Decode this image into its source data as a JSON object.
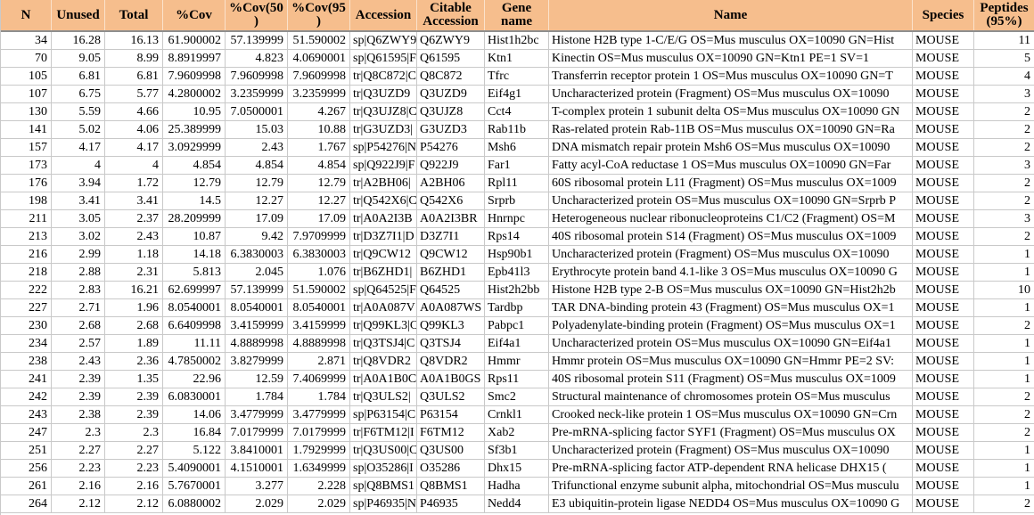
{
  "colors": {
    "header_bg": "#F6BE8D",
    "header_border": "#8E8E8E",
    "grid": "#C9C9C9",
    "text": "#000000"
  },
  "table": {
    "columns": [
      {
        "key": "n",
        "label": "N",
        "align": "right"
      },
      {
        "key": "unused",
        "label": "Unused",
        "align": "right"
      },
      {
        "key": "total",
        "label": "Total",
        "align": "right"
      },
      {
        "key": "pct-cov",
        "label": "%Cov",
        "align": "right"
      },
      {
        "key": "pct-cov-50",
        "label": "%Cov(50\n)",
        "align": "right"
      },
      {
        "key": "pct-cov-95",
        "label": "%Cov(95\n)",
        "align": "right"
      },
      {
        "key": "accession",
        "label": "Accession",
        "align": "left"
      },
      {
        "key": "citable-accession",
        "label": "Citable\nAccession",
        "align": "left"
      },
      {
        "key": "gene-name",
        "label": "Gene\nname",
        "align": "left"
      },
      {
        "key": "name",
        "label": "Name",
        "align": "left"
      },
      {
        "key": "species",
        "label": "Species",
        "align": "left"
      },
      {
        "key": "peptides-95",
        "label": "Peptides\n(95%)",
        "align": "right"
      }
    ],
    "rows": [
      [
        "34",
        "16.28",
        "16.13",
        "61.900002",
        "57.139999",
        "51.590002",
        "sp|Q6ZWY9",
        "Q6ZWY9",
        "Hist1h2bc",
        "Histone H2B type 1-C/E/G OS=Mus musculus OX=10090 GN=Hist",
        "MOUSE",
        "11"
      ],
      [
        "70",
        "9.05",
        "8.99",
        "8.8919997",
        "4.823",
        "4.0690001",
        "sp|Q61595|F",
        "Q61595",
        "Ktn1",
        "Kinectin OS=Mus musculus OX=10090 GN=Ktn1 PE=1 SV=1",
        "MOUSE",
        "5"
      ],
      [
        "105",
        "6.81",
        "6.81",
        "7.9609998",
        "7.9609998",
        "7.9609998",
        "tr|Q8C872|C",
        "Q8C872",
        "Tfrc",
        "Transferrin receptor protein 1 OS=Mus musculus OX=10090 GN=T",
        "MOUSE",
        "4"
      ],
      [
        "107",
        "6.75",
        "5.77",
        "4.2800002",
        "3.2359999",
        "3.2359999",
        "tr|Q3UZD9",
        "Q3UZD9",
        "Eif4g1",
        "Uncharacterized protein (Fragment) OS=Mus musculus OX=10090",
        "MOUSE",
        "3"
      ],
      [
        "130",
        "5.59",
        "4.66",
        "10.95",
        "7.0500001",
        "4.267",
        "tr|Q3UJZ8|C",
        "Q3UJZ8",
        "Cct4",
        "T-complex protein 1 subunit delta OS=Mus musculus OX=10090 GN",
        "MOUSE",
        "2"
      ],
      [
        "141",
        "5.02",
        "4.06",
        "25.389999",
        "15.03",
        "10.88",
        "tr|G3UZD3|",
        "G3UZD3",
        "Rab11b",
        "Ras-related protein Rab-11B OS=Mus musculus OX=10090 GN=Ra",
        "MOUSE",
        "2"
      ],
      [
        "157",
        "4.17",
        "4.17",
        "3.0929999",
        "2.43",
        "1.767",
        "sp|P54276|N",
        "P54276",
        "Msh6",
        "DNA mismatch repair protein Msh6 OS=Mus musculus OX=10090",
        "MOUSE",
        "2"
      ],
      [
        "173",
        "4",
        "4",
        "4.854",
        "4.854",
        "4.854",
        "sp|Q922J9|F",
        "Q922J9",
        "Far1",
        "Fatty acyl-CoA reductase 1 OS=Mus musculus OX=10090 GN=Far",
        "MOUSE",
        "3"
      ],
      [
        "176",
        "3.94",
        "1.72",
        "12.79",
        "12.79",
        "12.79",
        "tr|A2BH06|",
        "A2BH06",
        "Rpl11",
        "60S ribosomal protein L11 (Fragment) OS=Mus musculus OX=1009",
        "MOUSE",
        "2"
      ],
      [
        "198",
        "3.41",
        "3.41",
        "14.5",
        "12.27",
        "12.27",
        "tr|Q542X6|C",
        "Q542X6",
        "Srprb",
        "Uncharacterized protein OS=Mus musculus OX=10090 GN=Srprb P",
        "MOUSE",
        "2"
      ],
      [
        "211",
        "3.05",
        "2.37",
        "28.209999",
        "17.09",
        "17.09",
        "tr|A0A2I3B",
        "A0A2I3BR",
        "Hnrnpc",
        "Heterogeneous nuclear ribonucleoproteins C1/C2 (Fragment) OS=M",
        "MOUSE",
        "3"
      ],
      [
        "213",
        "3.02",
        "2.43",
        "10.87",
        "9.42",
        "7.9709999",
        "tr|D3Z7I1|D",
        "D3Z7I1",
        "Rps14",
        "40S ribosomal protein S14 (Fragment) OS=Mus musculus OX=1009",
        "MOUSE",
        "2"
      ],
      [
        "216",
        "2.99",
        "1.18",
        "14.18",
        "6.3830003",
        "6.3830003",
        "tr|Q9CW12",
        "Q9CW12",
        "Hsp90b1",
        "Uncharacterized protein (Fragment) OS=Mus musculus OX=10090",
        "MOUSE",
        "1"
      ],
      [
        "218",
        "2.88",
        "2.31",
        "5.813",
        "2.045",
        "1.076",
        "tr|B6ZHD1|",
        "B6ZHD1",
        "Epb41l3",
        "Erythrocyte protein band 4.1-like 3 OS=Mus musculus OX=10090 G",
        "MOUSE",
        "1"
      ],
      [
        "222",
        "2.83",
        "16.21",
        "62.699997",
        "57.139999",
        "51.590002",
        "sp|Q64525|F",
        "Q64525",
        "Hist2h2bb",
        "Histone H2B type 2-B OS=Mus musculus OX=10090 GN=Hist2h2b",
        "MOUSE",
        "10"
      ],
      [
        "227",
        "2.71",
        "1.96",
        "8.0540001",
        "8.0540001",
        "8.0540001",
        "tr|A0A087V",
        "A0A087WS",
        "Tardbp",
        "TAR DNA-binding protein 43 (Fragment) OS=Mus musculus OX=1",
        "MOUSE",
        "1"
      ],
      [
        "230",
        "2.68",
        "2.68",
        "6.6409998",
        "3.4159999",
        "3.4159999",
        "tr|Q99KL3|C",
        "Q99KL3",
        "Pabpc1",
        "Polyadenylate-binding protein (Fragment) OS=Mus musculus OX=1",
        "MOUSE",
        "2"
      ],
      [
        "234",
        "2.57",
        "1.89",
        "11.11",
        "4.8889998",
        "4.8889998",
        "tr|Q3TSJ4|C",
        "Q3TSJ4",
        "Eif4a1",
        "Uncharacterized protein OS=Mus musculus OX=10090 GN=Eif4a1",
        "MOUSE",
        "1"
      ],
      [
        "238",
        "2.43",
        "2.36",
        "4.7850002",
        "3.8279999",
        "2.871",
        "tr|Q8VDR2",
        "Q8VDR2",
        "Hmmr",
        "Hmmr protein OS=Mus musculus OX=10090 GN=Hmmr PE=2 SV:",
        "MOUSE",
        "1"
      ],
      [
        "241",
        "2.39",
        "1.35",
        "22.96",
        "12.59",
        "7.4069999",
        "tr|A0A1B0C",
        "A0A1B0GS",
        "Rps11",
        "40S ribosomal protein S11 (Fragment) OS=Mus musculus OX=1009",
        "MOUSE",
        "1"
      ],
      [
        "242",
        "2.39",
        "2.39",
        "6.0830001",
        "1.784",
        "1.784",
        "tr|Q3ULS2|",
        "Q3ULS2",
        "Smc2",
        "Structural maintenance of chromosomes protein OS=Mus musculus",
        "MOUSE",
        "2"
      ],
      [
        "243",
        "2.38",
        "2.39",
        "14.06",
        "3.4779999",
        "3.4779999",
        "sp|P63154|C",
        "P63154",
        "Crnkl1",
        "Crooked neck-like protein 1 OS=Mus musculus OX=10090 GN=Crn",
        "MOUSE",
        "2"
      ],
      [
        "247",
        "2.3",
        "2.3",
        "16.84",
        "7.0179999",
        "7.0179999",
        "tr|F6TM12|I",
        "F6TM12",
        "Xab2",
        "Pre-mRNA-splicing factor SYF1 (Fragment) OS=Mus musculus OX",
        "MOUSE",
        "2"
      ],
      [
        "251",
        "2.27",
        "2.27",
        "5.122",
        "3.8410001",
        "1.7929999",
        "tr|Q3US00|C",
        "Q3US00",
        "Sf3b1",
        "Uncharacterized protein (Fragment) OS=Mus musculus OX=10090",
        "MOUSE",
        "1"
      ],
      [
        "256",
        "2.23",
        "2.23",
        "5.4090001",
        "4.1510001",
        "1.6349999",
        "sp|O35286|I",
        "O35286",
        "Dhx15",
        "Pre-mRNA-splicing factor ATP-dependent RNA helicase DHX15 (",
        "MOUSE",
        "1"
      ],
      [
        "261",
        "2.16",
        "2.16",
        "5.7670001",
        "3.277",
        "2.228",
        "sp|Q8BMS1",
        "Q8BMS1",
        "Hadha",
        "Trifunctional enzyme subunit alpha, mitochondrial OS=Mus musculu",
        "MOUSE",
        "1"
      ],
      [
        "264",
        "2.12",
        "2.12",
        "6.0880002",
        "2.029",
        "2.029",
        "sp|P46935|N",
        "P46935",
        "Nedd4",
        "E3 ubiquitin-protein ligase NEDD4 OS=Mus musculus OX=10090 G",
        "MOUSE",
        "2"
      ]
    ]
  }
}
